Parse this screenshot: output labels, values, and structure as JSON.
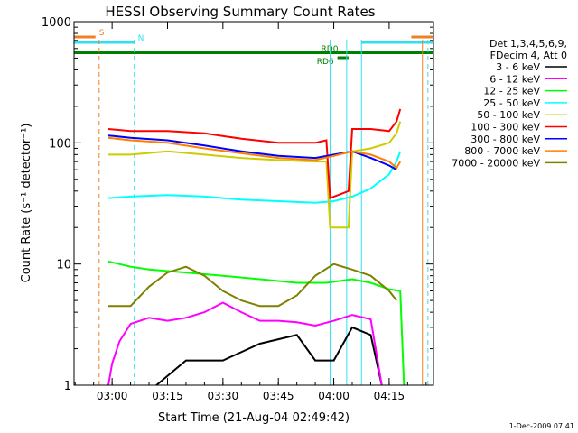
{
  "chart_data": {
    "type": "line",
    "title": "HESSI Observing Summary Count Rates",
    "xlabel": "Start Time (21-Aug-04 02:49:42)",
    "ylabel": "Count Rate (s⁻¹ detector⁻¹)",
    "xlim": [
      "02:49:42",
      "04:27:00"
    ],
    "ylim": [
      1,
      1000
    ],
    "yscale": "log",
    "x_ticks": [
      "03:00",
      "03:15",
      "03:30",
      "03:45",
      "04:00",
      "04:15"
    ],
    "y_ticks": [
      "1",
      "10",
      "100",
      "1000"
    ],
    "grid": false,
    "legend_placement": "right",
    "legend_header": [
      "Det 1,3,4,5,6,9,",
      "FDecim 4, Att 0"
    ],
    "footer_date": "1-Dec-2009 07:41",
    "flags": [
      {
        "label": "S",
        "color": "#f08020",
        "segments": [
          [
            "02:49:42",
            "02:55:30"
          ],
          [
            "04:21:00",
            "04:27:00"
          ]
        ]
      },
      {
        "label": "N",
        "color": "#30e0f0",
        "segments": [
          [
            "02:49:42",
            "03:06:00"
          ],
          [
            "04:07:30",
            "04:27:00"
          ]
        ]
      },
      {
        "label": "RD0",
        "color": "#008000",
        "segments": [
          [
            "02:49:42",
            "04:27:00"
          ]
        ]
      },
      {
        "label": "RD6",
        "color": "#008000",
        "segments": [
          [
            "04:01:00",
            "04:04:00"
          ]
        ]
      }
    ],
    "vertical_markers": [
      {
        "time": "02:56:30",
        "color": "#f08020",
        "style": "dashed"
      },
      {
        "time": "03:06:00",
        "color": "#30e0f0",
        "style": "dashed"
      },
      {
        "time": "04:24:00",
        "color": "#f08020",
        "style": "solid"
      },
      {
        "time": "04:25:30",
        "color": "#30e0f0",
        "style": "dashed"
      },
      {
        "time": "03:59:00",
        "color": "#30e0f0",
        "style": "solid"
      },
      {
        "time": "04:03:30",
        "color": "#30e0f0",
        "style": "solid"
      },
      {
        "time": "04:07:30",
        "color": "#30e0f0",
        "style": "solid"
      }
    ],
    "series": [
      {
        "name": "3 - 6 keV",
        "color": "#000000",
        "x": [
          "03:12",
          "03:20",
          "03:30",
          "03:40",
          "03:50",
          "03:55",
          "04:00",
          "04:05",
          "04:10",
          "04:13"
        ],
        "y": [
          1,
          1.6,
          1.6,
          2.2,
          2.6,
          1.6,
          1.6,
          3,
          2.6,
          1
        ]
      },
      {
        "name": "6 - 12 keV",
        "color": "#ff00ff",
        "x": [
          "02:59",
          "03:00",
          "03:02",
          "03:05",
          "03:10",
          "03:15",
          "03:20",
          "03:25",
          "03:30",
          "03:35",
          "03:40",
          "03:45",
          "03:50",
          "03:55",
          "04:00",
          "04:05",
          "04:10",
          "04:13"
        ],
        "y": [
          1,
          1.5,
          2.3,
          3.2,
          3.6,
          3.4,
          3.6,
          4,
          4.8,
          4,
          3.4,
          3.4,
          3.3,
          3.1,
          3.4,
          3.8,
          3.5,
          1
        ]
      },
      {
        "name": "12 - 25 keV",
        "color": "#00ff00",
        "x": [
          "02:59",
          "03:05",
          "03:10",
          "03:20",
          "03:30",
          "03:40",
          "03:50",
          "03:58",
          "04:05",
          "04:10",
          "04:15",
          "04:18",
          "04:19"
        ],
        "y": [
          10.5,
          9.5,
          9,
          8.5,
          8,
          7.5,
          7,
          7,
          7.5,
          7,
          6.2,
          6,
          1
        ]
      },
      {
        "name": "25 - 50 keV",
        "color": "#00ffff",
        "x": [
          "02:59",
          "03:05",
          "03:15",
          "03:25",
          "03:35",
          "03:45",
          "03:55",
          "04:00",
          "04:05",
          "04:10",
          "04:15",
          "04:17",
          "04:18"
        ],
        "y": [
          35,
          36,
          37,
          36,
          34,
          33,
          32,
          33,
          36,
          42,
          55,
          70,
          85
        ]
      },
      {
        "name": "50 - 100 keV",
        "color": "#cccc00",
        "x": [
          "02:59",
          "03:05",
          "03:15",
          "03:25",
          "03:35",
          "03:45",
          "03:55",
          "03:58",
          "03:59",
          "04:04",
          "04:05",
          "04:10",
          "04:15",
          "04:17",
          "04:18"
        ],
        "y": [
          80,
          80,
          85,
          80,
          75,
          72,
          70,
          70,
          20,
          20,
          85,
          90,
          100,
          120,
          150
        ]
      },
      {
        "name": "100 - 300 keV",
        "color": "#ff0000",
        "x": [
          "02:59",
          "03:05",
          "03:15",
          "03:25",
          "03:35",
          "03:45",
          "03:55",
          "03:58",
          "03:59",
          "04:04",
          "04:05",
          "04:10",
          "04:15",
          "04:17",
          "04:18"
        ],
        "y": [
          130,
          125,
          125,
          120,
          108,
          100,
          100,
          105,
          35,
          40,
          130,
          130,
          125,
          150,
          190
        ]
      },
      {
        "name": "300 - 800 keV",
        "color": "#0000ff",
        "x": [
          "02:59",
          "03:05",
          "03:15",
          "03:25",
          "03:35",
          "03:45",
          "03:55",
          "04:00",
          "04:05",
          "04:10",
          "04:15",
          "04:17"
        ],
        "y": [
          115,
          110,
          105,
          95,
          85,
          78,
          75,
          80,
          85,
          75,
          65,
          60
        ]
      },
      {
        "name": "800 - 7000 keV",
        "color": "#ff8000",
        "x": [
          "02:59",
          "03:05",
          "03:15",
          "03:25",
          "03:35",
          "03:45",
          "03:55",
          "04:00",
          "04:05",
          "04:10",
          "04:15",
          "04:17",
          "04:18"
        ],
        "y": [
          110,
          105,
          100,
          90,
          82,
          75,
          72,
          78,
          85,
          80,
          70,
          62,
          70
        ]
      },
      {
        "name": "7000 - 20000 keV",
        "color": "#808000",
        "x": [
          "02:59",
          "03:05",
          "03:10",
          "03:15",
          "03:20",
          "03:25",
          "03:30",
          "03:35",
          "03:40",
          "03:45",
          "03:50",
          "03:55",
          "04:00",
          "04:05",
          "04:10",
          "04:15",
          "04:17"
        ],
        "y": [
          4.5,
          4.5,
          6.5,
          8.5,
          9.5,
          8,
          6,
          5,
          4.5,
          4.5,
          5.5,
          8,
          10,
          9,
          8,
          6,
          5
        ]
      }
    ]
  }
}
